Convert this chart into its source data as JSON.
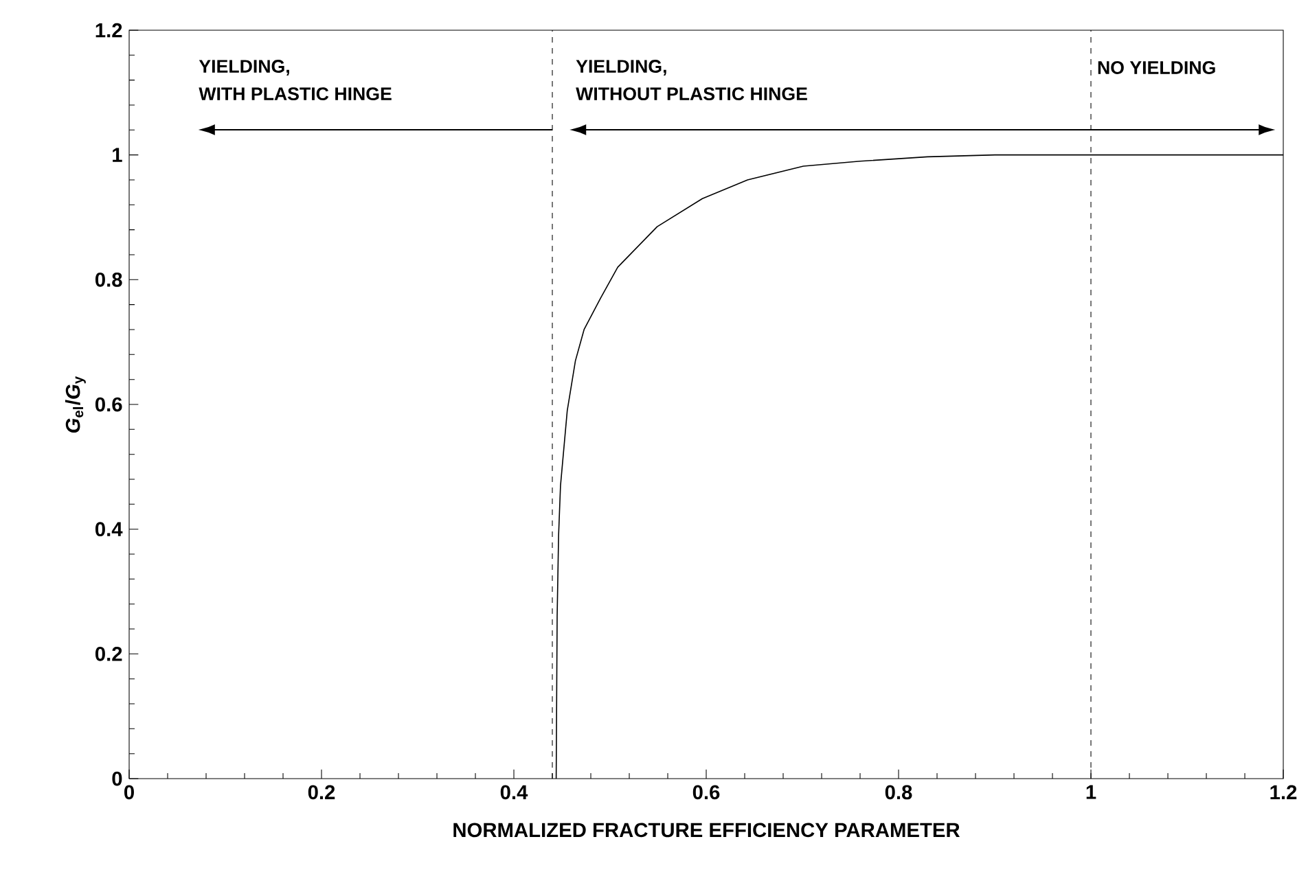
{
  "chart_data": {
    "type": "line",
    "xlabel": "NORMALIZED FRACTURE EFFICIENCY PARAMETER",
    "ylabel": "*G*$_{el}$/*G*$_{y}$",
    "x": [
      0.444,
      0.445,
      0.4465,
      0.4485,
      0.4555,
      0.464,
      0.473,
      0.49,
      0.508,
      0.549,
      0.596,
      0.643,
      0.701,
      0.76,
      0.83,
      0.9,
      1.0,
      1.2
    ],
    "series": [
      {
        "color": "#000000",
        "values": [
          0,
          0.26,
          0.39,
          0.47,
          0.59,
          0.67,
          0.72,
          0.77,
          0.82,
          0.885,
          0.93,
          0.96,
          0.982,
          0.99,
          0.997,
          1.0,
          1.0,
          1.0
        ]
      }
    ],
    "xlim": [
      0,
      1.2
    ],
    "ylim": [
      0,
      1.2
    ],
    "xticks": [
      0,
      0.2,
      0.4,
      0.6,
      0.8,
      1,
      1.2
    ],
    "yticks": [
      0,
      0.2,
      0.4,
      0.6,
      0.8,
      1,
      1.2
    ],
    "ref_lines": [
      {
        "axis": "x",
        "value": 0.44,
        "line_style": "dashed",
        "color": "#000000"
      },
      {
        "axis": "x",
        "value": 1,
        "line_style": "dashed",
        "color": "#000000"
      }
    ],
    "annotations": [
      "YIELDING,",
      "WITH PLASTIC HINGE",
      "YIELDING,",
      "WITHOUT PLASTIC HINGE",
      "NO YIELDING"
    ],
    "grid": false,
    "marker": "none",
    "line_style": "solid"
  }
}
